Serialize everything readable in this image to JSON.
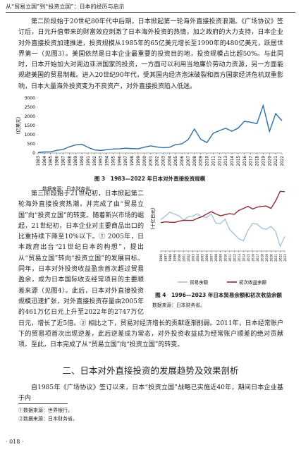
{
  "header": {
    "title": "从“贸易立国”到“投资立国”：日本的经历与启示"
  },
  "paragraphs": [
    "第二阶段始于20世纪80年代中后期，日本掀起第一轮海外直接投资浪潮。《广场协议》签订后，日元升值带来的财富效应刺激了日本海外投资的热情，加之政府的大力支持，日本企业对外直接投资加速推进，投资规模从1985年的65亿美元增长至1990年的480亿美元，跃居世界第一（见图3）。美国依然是日本企业最重要的投资目的地，投资规模占比超50%。与此同时，日本开始加大对周边亚洲国家的投资，一方面可以利用当地廉价劳动力资源，另一方面能规避美国的贸易制裁。进入20世纪90年代，受其国内经济泡沫破裂和西方国家经济危机双重影响，日本大量海外投资变为不良资产，对外直接投资陷入低迷。",
    "第三阶段始于21世纪初，日本掀起第二轮海外直接投资热潮，并完成了由“贸易立国”向“投资立国”的转变。随着新兴市场的崛起，21世纪初，日本企业对主要商品出口的比重持续下降至10%以下。① 2005年，日本政府出台“21世纪日本的构想”，提出从“贸易立国”转向“投资立国”的发展目标。同年，日本对外投资收益盈余首次超过贸易盈余，成为日本国际收支经常项目的主要顺差来源（见图4）。此后，日本对外直接投资规模迅速扩张，对外直接投资存量由2005年的461万亿日元上升至2022年的2747万亿日元，增长了近5倍。② 相比之下，贸易对经济增长的贡献逐渐削弱。2011年，日本经常账户下的贸易项首次出现逆差，此后逆差成为常态，对外投资收益成为经常账户顺差的绝对贡献项。至此，日本完成了从“贸易立国”向“投资立国”的转变。",
    "自1985年《广场协议》签订以来，日本“投资立国”战略已实施近40年，期间日本企业基于内"
  ],
  "section": {
    "title": "二、日本对外直接投资的发展趋势及效果剖析"
  },
  "footnotes": [
    "①数据来源：世界银行。",
    "②数据来源：日本财务省。"
  ],
  "page_number": "· 018 ·",
  "chart_data": [
    {
      "type": "line",
      "title": "图 3　1983—2022 年日本对外直接投资规模",
      "note": "数据来源：日本财务省。",
      "y_label": "（亿美元）",
      "color": "#2f6ea5",
      "categories": [
        "1983",
        "1984",
        "1985",
        "1986",
        "1987",
        "1988",
        "1989",
        "1990",
        "1991",
        "1992",
        "1993",
        "1994",
        "1995",
        "1996",
        "1997",
        "1998",
        "1999",
        "2000",
        "2001",
        "2002",
        "2003",
        "2004",
        "2005",
        "2006",
        "2007",
        "2008",
        "2009",
        "2010",
        "2011",
        "2012",
        "2013",
        "2014",
        "2015",
        "2016",
        "2017",
        "2018",
        "2019",
        "2020",
        "2021",
        "2022"
      ],
      "values": [
        32,
        60,
        65,
        145,
        195,
        340,
        440,
        480,
        310,
        170,
        140,
        180,
        220,
        230,
        260,
        240,
        230,
        320,
        390,
        330,
        290,
        310,
        460,
        500,
        730,
        1310,
        750,
        570,
        1080,
        1220,
        1350,
        1190,
        1360,
        1730,
        1680,
        1600,
        2590,
        1180,
        2150,
        1760
      ],
      "ylim": [
        0,
        3000
      ],
      "yticks": [
        0,
        500,
        1000,
        1500,
        2000,
        2500,
        3000
      ],
      "grid": false
    },
    {
      "type": "line",
      "title": "图 4　1996—2023 年日本贸易余额和初次收益余额",
      "note": "数据来源：日本财务省。",
      "y_label": "（十亿日元）",
      "categories": [
        "1996",
        "1997",
        "1998",
        "1999",
        "2000",
        "2001",
        "2002",
        "2003",
        "2004",
        "2005",
        "2006",
        "2007",
        "2008",
        "2009",
        "2010",
        "2011",
        "2012",
        "2013",
        "2014",
        "2015",
        "2016",
        "2017",
        "2018",
        "2019",
        "2020",
        "2021",
        "2022",
        "2023"
      ],
      "series": [
        {
          "name": "贸易余额",
          "color": "#a9c2da",
          "values": [
            9000,
            12300,
            16000,
            14100,
            12600,
            8400,
            11800,
            12400,
            14400,
            11700,
            11100,
            14200,
            5800,
            5300,
            9500,
            -300,
            -4300,
            -8800,
            -10500,
            -800,
            5500,
            4900,
            1100,
            100,
            2800,
            -1700,
            -15700,
            -6500
          ]
        },
        {
          "name": "初次收益余额",
          "color": "#8c2a2e",
          "values": [
            6200,
            7000,
            6600,
            6500,
            7600,
            8400,
            8300,
            8300,
            10300,
            11800,
            14200,
            16400,
            14300,
            12600,
            13600,
            14600,
            13900,
            17600,
            19400,
            21300,
            18900,
            20600,
            21400,
            21600,
            19400,
            26300,
            35200,
            34900
          ]
        }
      ],
      "ylim": [
        -20000,
        40000
      ],
      "grid": false
    }
  ]
}
